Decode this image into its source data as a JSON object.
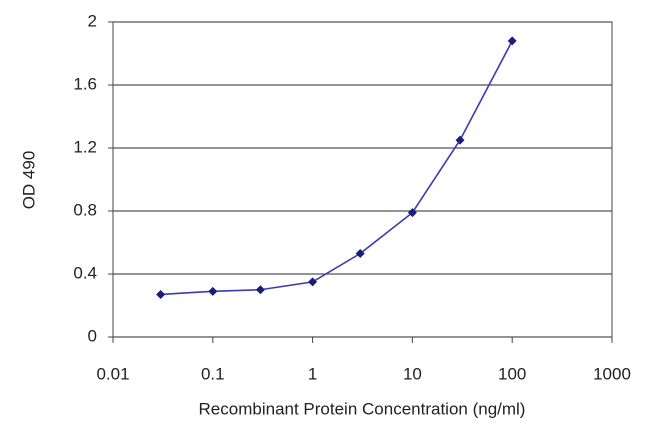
{
  "chart_data": {
    "type": "line",
    "x_label": "Recombinant Protein Concentration (ng/ml)",
    "y_label": "OD 490",
    "xscale": "log",
    "xlim": [
      0.01,
      1000
    ],
    "xticks": [
      0.01,
      0.1,
      1,
      10,
      100,
      1000
    ],
    "ylim": [
      0,
      2
    ],
    "yticks": [
      0,
      0.4,
      0.8,
      1.2,
      1.6,
      2
    ],
    "grid": true,
    "series": [
      {
        "color": "#3b3bb0",
        "marker_color": "#1c1c7a",
        "x": [
          0.03,
          0.1,
          0.3,
          1,
          3,
          10,
          30,
          100
        ],
        "values": [
          0.27,
          0.29,
          0.3,
          0.35,
          0.53,
          0.79,
          1.25,
          1.88
        ]
      }
    ]
  }
}
